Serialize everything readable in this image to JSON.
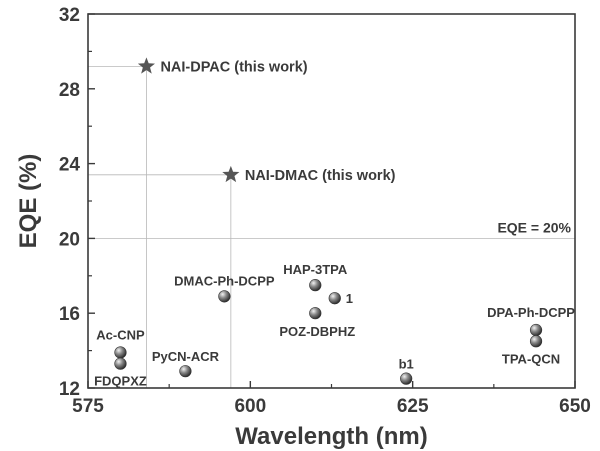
{
  "chart_data": {
    "type": "scatter",
    "xlabel": "Wavelength (nm)",
    "ylabel": "EQE (%)",
    "xlim": [
      575,
      650
    ],
    "ylim": [
      12,
      32
    ],
    "xticks": [
      575,
      600,
      625,
      650
    ],
    "yticks": [
      12,
      16,
      20,
      24,
      28,
      32
    ],
    "reference_line": {
      "y": 20,
      "label": "EQE = 20%"
    },
    "highlighted_points": [
      {
        "label": "NAI-DPAC (this work)",
        "x": 584,
        "y": 29.2
      },
      {
        "label": "NAI-DMAC  (this work)",
        "x": 597,
        "y": 23.4
      }
    ],
    "literature_points": [
      {
        "label": "Ac-CNP",
        "x": 580,
        "y": 13.9
      },
      {
        "label": "FDQPXZ",
        "x": 580,
        "y": 13.3
      },
      {
        "label": "PyCN-ACR",
        "x": 590,
        "y": 12.9
      },
      {
        "label": "DMAC-Ph-DCPP",
        "x": 596,
        "y": 16.9
      },
      {
        "label": "HAP-3TPA",
        "x": 610,
        "y": 17.5
      },
      {
        "label": "1",
        "x": 613,
        "y": 16.8
      },
      {
        "label": "POZ-DBPHZ",
        "x": 610,
        "y": 16.0
      },
      {
        "label": "b1",
        "x": 624,
        "y": 12.5
      },
      {
        "label": "DPA-Ph-DCPP",
        "x": 644,
        "y": 15.1
      },
      {
        "label": "TPA-QCN",
        "x": 644,
        "y": 14.5
      }
    ]
  }
}
